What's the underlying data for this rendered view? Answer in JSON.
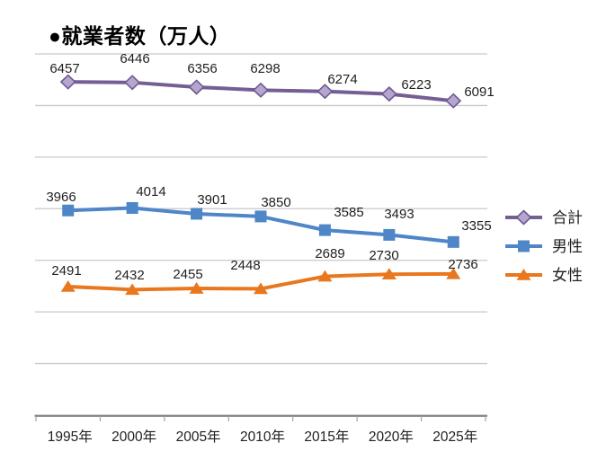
{
  "title": "●就業者数（万人）",
  "chart_data": {
    "type": "line",
    "title": "●就業者数（万人）",
    "categories": [
      "1995年",
      "2000年",
      "2005年",
      "2010年",
      "2015年",
      "2020年",
      "2025年"
    ],
    "series": [
      {
        "name": "合計",
        "semantic": "total",
        "marker": "diamond",
        "line_color": "#755E93",
        "marker_fill": "#B5A6CD",
        "marker_stroke": "#6F5894",
        "values": [
          6457,
          6446,
          6356,
          6298,
          6274,
          6223,
          6091
        ]
      },
      {
        "name": "男性",
        "semantic": "male",
        "marker": "square",
        "line_color": "#4E86C8",
        "marker_fill": "#4E86C8",
        "marker_stroke": "#4E86C8",
        "values": [
          3966,
          4014,
          3901,
          3850,
          3585,
          3493,
          3355
        ]
      },
      {
        "name": "女性",
        "semantic": "female",
        "marker": "triangle",
        "line_color": "#E8771E",
        "marker_fill": "#E8771E",
        "marker_stroke": "#E8771E",
        "values": [
          2491,
          2432,
          2455,
          2448,
          2689,
          2730,
          2736
        ]
      }
    ],
    "xlabel": "",
    "ylabel": "",
    "ylim": [
      0,
      7000
    ],
    "gridline_step": 1000,
    "grid": true,
    "y_tick_labels_shown": false,
    "data_labels": true,
    "legend_position": "right"
  },
  "colors": {
    "background": "#FFFFFF",
    "gridline": "#C9C9C9",
    "axis": "#8A8A8A",
    "tick": "#A3A3A3",
    "label_text": "#1F1F1F",
    "title_text": "#000000"
  }
}
